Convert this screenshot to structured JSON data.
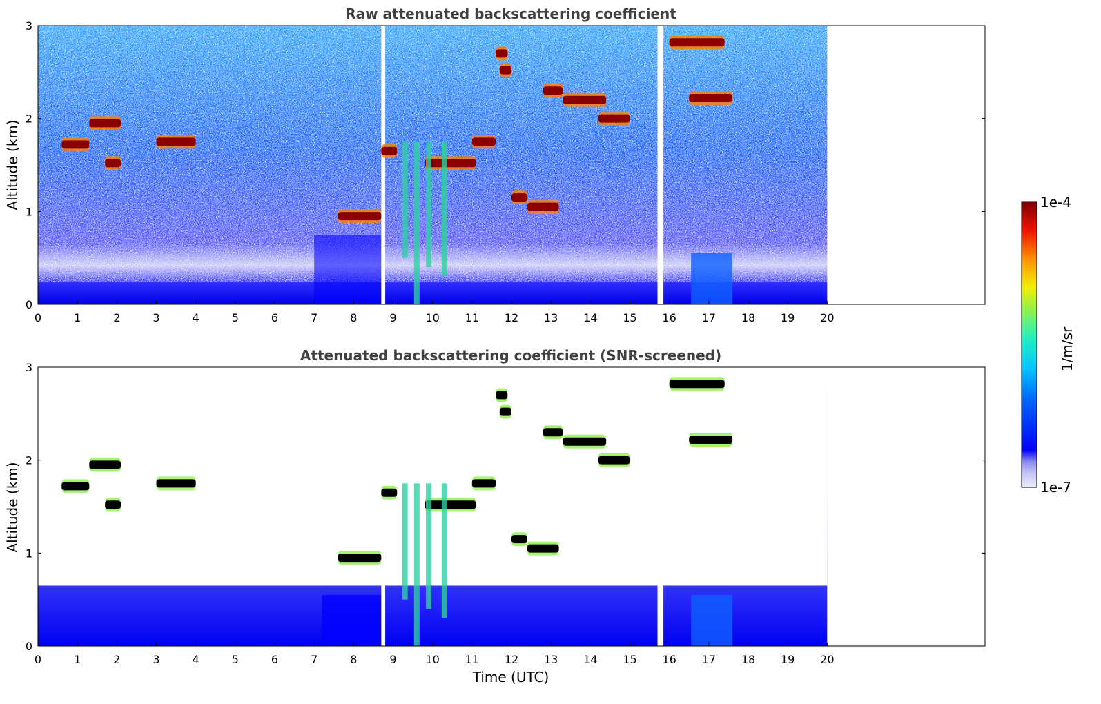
{
  "chart_data": [
    {
      "type": "heatmap",
      "title": "Raw attenuated backscattering coefficient",
      "xlabel": "",
      "ylabel": "Altitude (km)",
      "xlim": [
        0,
        24
      ],
      "ylim": [
        0,
        3
      ],
      "x_ticks": [
        "0",
        "1",
        "2",
        "3",
        "4",
        "5",
        "6",
        "7",
        "8",
        "9",
        "10",
        "11",
        "12",
        "13",
        "14",
        "15",
        "16",
        "17",
        "18",
        "19",
        "20"
      ],
      "y_ticks": [
        "0",
        "1",
        "2",
        "3"
      ],
      "data_end_time": 20,
      "data_gaps": [
        [
          8.7,
          8.8
        ],
        [
          15.7,
          15.85
        ]
      ],
      "grid": false,
      "cloud_layers": [
        {
          "t0": 0.6,
          "t1": 1.3,
          "alt": 1.72
        },
        {
          "t0": 1.3,
          "t1": 2.1,
          "alt": 1.95
        },
        {
          "t0": 1.7,
          "t1": 2.1,
          "alt": 1.52
        },
        {
          "t0": 3.0,
          "t1": 4.0,
          "alt": 1.75
        },
        {
          "t0": 8.7,
          "t1": 9.1,
          "alt": 1.65
        },
        {
          "t0": 9.8,
          "t1": 11.1,
          "alt": 1.52
        },
        {
          "t0": 11.0,
          "t1": 11.6,
          "alt": 1.75
        },
        {
          "t0": 11.6,
          "t1": 11.9,
          "alt": 2.7
        },
        {
          "t0": 11.7,
          "t1": 12.0,
          "alt": 2.52
        },
        {
          "t0": 12.0,
          "t1": 12.4,
          "alt": 1.15
        },
        {
          "t0": 12.4,
          "t1": 13.2,
          "alt": 1.05
        },
        {
          "t0": 12.8,
          "t1": 13.3,
          "alt": 2.3
        },
        {
          "t0": 13.3,
          "t1": 14.4,
          "alt": 2.2
        },
        {
          "t0": 14.2,
          "t1": 15.0,
          "alt": 2.0
        },
        {
          "t0": 16.0,
          "t1": 17.4,
          "alt": 2.82
        },
        {
          "t0": 16.5,
          "t1": 17.6,
          "alt": 2.22
        },
        {
          "t0": 7.6,
          "t1": 8.7,
          "alt": 0.95
        }
      ]
    },
    {
      "type": "heatmap",
      "title": "Attenuated backscattering coefficient (SNR-screened)",
      "xlabel": "Time (UTC)",
      "ylabel": "Altitude (km)",
      "xlim": [
        0,
        24
      ],
      "ylim": [
        0,
        3
      ],
      "x_ticks": [
        "0",
        "1",
        "2",
        "3",
        "4",
        "5",
        "6",
        "7",
        "8",
        "9",
        "10",
        "11",
        "12",
        "13",
        "14",
        "15",
        "16",
        "17",
        "18",
        "19",
        "20"
      ],
      "y_ticks": [
        "0",
        "1",
        "2",
        "3"
      ],
      "data_end_time": 20,
      "data_gaps": [
        [
          8.7,
          8.8
        ],
        [
          15.7,
          15.85
        ]
      ],
      "grid": false
    }
  ],
  "colorbar": {
    "label": "1/m/sr",
    "max_label": "1e-4",
    "min_label": "1e-7",
    "scale": "log",
    "range": [
      1e-07,
      0.0001
    ],
    "colormap": [
      "#e8e8fa",
      "#c2c2f4",
      "#8c8cf0",
      "#0000ff",
      "#0050ff",
      "#00a0ff",
      "#00e0e0",
      "#40f0a0",
      "#a0f040",
      "#f0f000",
      "#ffb000",
      "#ff5000",
      "#e00000",
      "#800000"
    ]
  }
}
